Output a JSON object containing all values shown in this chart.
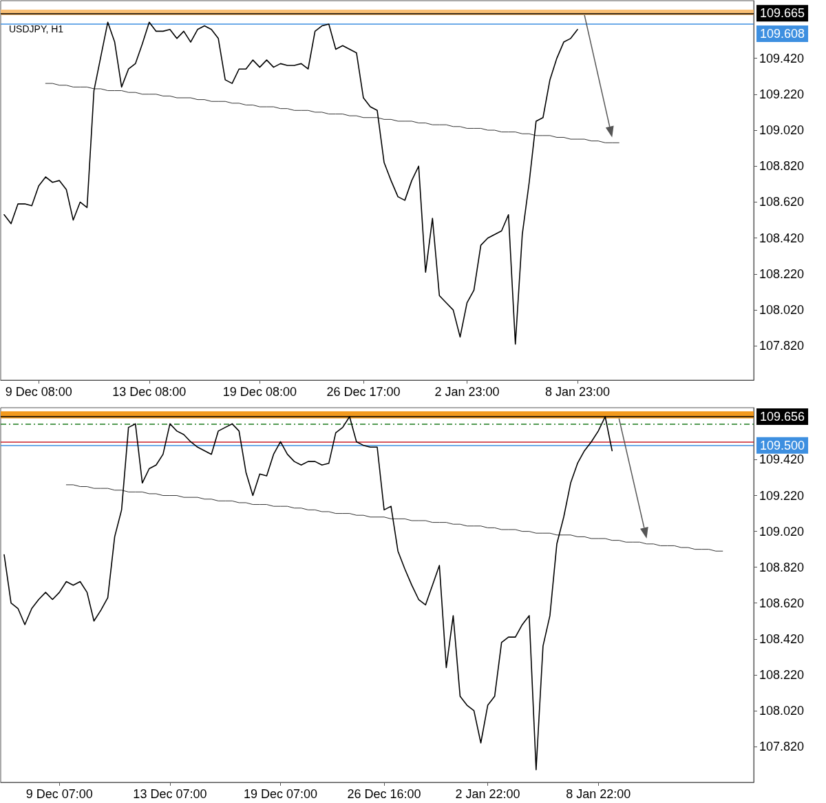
{
  "chart_data": [
    {
      "type": "line",
      "title": "USDJPY, H1",
      "ylim": [
        107.63,
        109.74
      ],
      "categories": [
        null,
        null,
        null,
        null,
        null,
        "9 Dec 08:00",
        null,
        null,
        null,
        null,
        null,
        null,
        null,
        null,
        null,
        null,
        null,
        null,
        null,
        null,
        null,
        "13 Dec 08:00",
        null,
        null,
        null,
        null,
        null,
        null,
        null,
        null,
        null,
        null,
        null,
        null,
        null,
        null,
        null,
        "19 Dec 08:00",
        null,
        null,
        null,
        null,
        null,
        null,
        null,
        null,
        null,
        null,
        null,
        null,
        null,
        null,
        "26 Dec 17:00",
        null,
        null,
        null,
        null,
        null,
        null,
        null,
        null,
        null,
        null,
        null,
        null,
        null,
        null,
        "2 Jan 23:00",
        null,
        null,
        null,
        null,
        null,
        null,
        null,
        null,
        null,
        null,
        null,
        null,
        null,
        null,
        null,
        "8 Jan 23:00",
        null,
        null,
        null,
        null,
        null,
        null,
        null,
        null,
        null,
        null,
        null,
        null,
        null,
        null,
        null,
        null,
        null,
        null,
        null,
        null,
        null,
        null,
        null,
        null,
        null
      ],
      "yticks": [
        {
          "value": 107.82,
          "label": "107.820"
        },
        {
          "value": 108.02,
          "label": "108.020"
        },
        {
          "value": 108.22,
          "label": "108.220"
        },
        {
          "value": 108.42,
          "label": "108.420"
        },
        {
          "value": 108.62,
          "label": "108.620"
        },
        {
          "value": 108.82,
          "label": "108.820"
        },
        {
          "value": 109.02,
          "label": "109.020"
        },
        {
          "value": 109.22,
          "label": "109.220"
        },
        {
          "value": 109.42,
          "label": "109.420"
        }
      ],
      "grid": false,
      "marker": "none",
      "line_style": "solid",
      "series": [
        {
          "color": "#000000",
          "values": [
            108.55,
            108.5,
            108.61,
            108.61,
            108.6,
            108.71,
            108.76,
            108.73,
            108.74,
            108.69,
            108.52,
            108.62,
            108.59,
            109.24,
            109.43,
            109.62,
            109.51,
            109.26,
            109.36,
            109.39,
            109.5,
            109.62,
            109.57,
            109.57,
            109.58,
            109.53,
            109.57,
            109.51,
            109.58,
            109.6,
            109.58,
            109.53,
            109.3,
            109.28,
            109.36,
            109.36,
            109.41,
            109.37,
            109.41,
            109.37,
            109.39,
            109.38,
            109.38,
            109.39,
            109.36,
            109.57,
            109.6,
            109.61,
            109.47,
            109.49,
            109.47,
            109.45,
            109.2,
            109.15,
            109.13,
            108.84,
            108.74,
            108.65,
            108.63,
            108.74,
            108.82,
            108.23,
            108.53,
            108.1,
            108.06,
            108.02,
            107.87,
            108.06,
            108.13,
            108.38,
            108.42,
            108.44,
            108.46,
            108.55,
            107.83,
            108.44,
            108.73,
            109.07,
            109.09,
            109.3,
            109.42,
            109.51,
            109.53,
            109.58,
            null,
            null,
            null,
            null,
            null,
            null,
            null,
            null,
            null,
            null,
            null,
            null,
            null,
            null,
            null,
            null,
            null,
            null,
            null,
            null,
            null,
            null,
            null,
            null,
            null
          ]
        },
        {
          "type": "line",
          "color": "#333333",
          "values": [
            null,
            null,
            null,
            null,
            null,
            null,
            109.28,
            109.28,
            109.27,
            109.27,
            109.26,
            109.26,
            109.26,
            109.25,
            109.25,
            109.24,
            109.24,
            109.24,
            109.23,
            109.23,
            109.22,
            109.22,
            109.22,
            109.21,
            109.21,
            109.2,
            109.2,
            109.2,
            109.19,
            109.19,
            109.18,
            109.18,
            109.18,
            109.17,
            109.17,
            109.16,
            109.16,
            109.15,
            109.15,
            109.15,
            109.14,
            109.14,
            109.13,
            109.13,
            109.13,
            109.12,
            109.12,
            109.11,
            109.11,
            109.11,
            109.1,
            109.1,
            109.09,
            109.09,
            109.09,
            109.08,
            109.08,
            109.07,
            109.07,
            109.07,
            109.06,
            109.06,
            109.05,
            109.05,
            109.05,
            109.04,
            109.04,
            109.03,
            109.03,
            109.03,
            109.02,
            109.02,
            109.01,
            109.01,
            109.01,
            109.0,
            109.0,
            108.99,
            108.99,
            108.99,
            108.98,
            108.98,
            108.97,
            108.97,
            108.97,
            108.96,
            108.96,
            108.95,
            108.95,
            108.95,
            null,
            null,
            null,
            null,
            null,
            null,
            null,
            null,
            null,
            null,
            null,
            null,
            null,
            null,
            null,
            null,
            null,
            null,
            null
          ]
        }
      ],
      "ref_lines": [
        {
          "axis": "y",
          "value": 109.665,
          "label": "109.665",
          "color": "#000000"
        },
        {
          "axis": "y",
          "value": 109.608,
          "label": "109.608",
          "color": "#3d8fe0"
        }
      ],
      "bands": [
        {
          "axis": "y",
          "from": 109.66,
          "to": 109.69,
          "color": "#f9bf75"
        }
      ]
    },
    {
      "type": "line",
      "ylim": [
        107.62,
        109.71
      ],
      "categories": [
        null,
        null,
        null,
        null,
        null,
        null,
        null,
        null,
        "9 Dec 07:00",
        null,
        null,
        null,
        null,
        null,
        null,
        null,
        null,
        null,
        null,
        null,
        null,
        null,
        null,
        null,
        "13 Dec 07:00",
        null,
        null,
        null,
        null,
        null,
        null,
        null,
        null,
        null,
        null,
        null,
        null,
        null,
        null,
        null,
        "19 Dec 07:00",
        null,
        null,
        null,
        null,
        null,
        null,
        null,
        null,
        null,
        null,
        null,
        null,
        null,
        null,
        "26 Dec 16:00",
        null,
        null,
        null,
        null,
        null,
        null,
        null,
        null,
        null,
        null,
        null,
        null,
        null,
        null,
        "2 Jan 22:00",
        null,
        null,
        null,
        null,
        null,
        null,
        null,
        null,
        null,
        null,
        null,
        null,
        null,
        null,
        null,
        "8 Jan 22:00",
        null,
        null,
        null,
        null,
        null,
        null,
        null,
        null,
        null,
        null,
        null,
        null,
        null,
        null,
        null,
        null,
        null,
        null,
        null,
        null,
        null,
        null
      ],
      "yticks": [
        {
          "value": 107.82,
          "label": "107.820"
        },
        {
          "value": 108.02,
          "label": "108.020"
        },
        {
          "value": 108.22,
          "label": "108.220"
        },
        {
          "value": 108.42,
          "label": "108.420"
        },
        {
          "value": 108.62,
          "label": "108.620"
        },
        {
          "value": 108.82,
          "label": "108.820"
        },
        {
          "value": 109.02,
          "label": "109.020"
        },
        {
          "value": 109.22,
          "label": "109.220"
        },
        {
          "value": 109.42,
          "label": "109.420"
        }
      ],
      "grid": false,
      "marker": "none",
      "line_style": "solid",
      "series": [
        {
          "color": "#000000",
          "values": [
            108.89,
            108.62,
            108.59,
            108.5,
            108.59,
            108.64,
            108.68,
            108.64,
            108.68,
            108.74,
            108.72,
            108.74,
            108.68,
            108.52,
            108.58,
            108.65,
            108.99,
            109.14,
            109.6,
            109.62,
            109.29,
            109.37,
            109.39,
            109.45,
            109.62,
            109.58,
            109.56,
            109.52,
            109.49,
            109.47,
            109.45,
            109.58,
            109.6,
            109.62,
            109.58,
            109.35,
            109.22,
            109.34,
            109.33,
            109.45,
            109.52,
            109.45,
            109.41,
            109.39,
            109.41,
            109.41,
            109.39,
            109.4,
            109.57,
            109.6,
            109.66,
            109.52,
            109.5,
            109.49,
            109.49,
            109.14,
            109.16,
            108.91,
            108.81,
            108.72,
            108.64,
            108.61,
            108.72,
            108.83,
            108.26,
            108.55,
            108.1,
            108.05,
            108.02,
            107.84,
            108.05,
            108.1,
            108.4,
            108.43,
            108.43,
            108.5,
            108.55,
            107.69,
            108.38,
            108.55,
            108.95,
            109.1,
            109.29,
            109.4,
            109.47,
            109.52,
            109.58,
            109.66,
            109.47,
            null,
            null,
            null,
            null,
            null,
            null,
            null,
            null,
            null,
            null,
            null,
            null,
            null,
            null,
            null,
            null,
            null,
            null,
            null,
            null
          ]
        },
        {
          "type": "line",
          "color": "#333333",
          "values": [
            null,
            null,
            null,
            null,
            null,
            null,
            null,
            null,
            null,
            109.28,
            109.28,
            109.27,
            109.27,
            109.26,
            109.26,
            109.26,
            109.25,
            109.25,
            109.24,
            109.24,
            109.24,
            109.23,
            109.23,
            109.22,
            109.22,
            109.22,
            109.21,
            109.21,
            109.21,
            109.2,
            109.2,
            109.19,
            109.19,
            109.19,
            109.18,
            109.18,
            109.17,
            109.17,
            109.17,
            109.16,
            109.16,
            109.16,
            109.15,
            109.15,
            109.14,
            109.14,
            109.13,
            109.13,
            109.12,
            109.12,
            109.12,
            109.11,
            109.11,
            109.1,
            109.1,
            109.1,
            109.09,
            109.09,
            109.09,
            109.08,
            109.08,
            109.08,
            109.07,
            109.07,
            109.07,
            109.06,
            109.06,
            109.05,
            109.05,
            109.05,
            109.04,
            109.04,
            109.03,
            109.03,
            109.03,
            109.02,
            109.02,
            109.01,
            109.01,
            109.01,
            109.0,
            109.0,
            109.0,
            108.99,
            108.99,
            108.98,
            108.98,
            108.98,
            108.97,
            108.97,
            108.96,
            108.96,
            108.96,
            108.95,
            108.95,
            108.94,
            108.94,
            108.94,
            108.93,
            108.93,
            108.92,
            108.92,
            108.92,
            108.91,
            108.91,
            null,
            null,
            null,
            null
          ]
        }
      ],
      "ref_lines": [
        {
          "axis": "y",
          "value": 109.656,
          "label": "109.656",
          "color": "#000000"
        },
        {
          "axis": "y",
          "value": 109.62,
          "label": null,
          "color": "#1e7b1e",
          "line_style": "dashed"
        },
        {
          "axis": "y",
          "value": 109.52,
          "label": null,
          "color": "#c8202a"
        },
        {
          "axis": "y",
          "value": 109.5,
          "label": "109.500",
          "color": "#3d8fe0"
        }
      ],
      "bands": [
        {
          "axis": "y",
          "from": 109.65,
          "to": 109.69,
          "color": "#f39a1e"
        }
      ]
    }
  ]
}
